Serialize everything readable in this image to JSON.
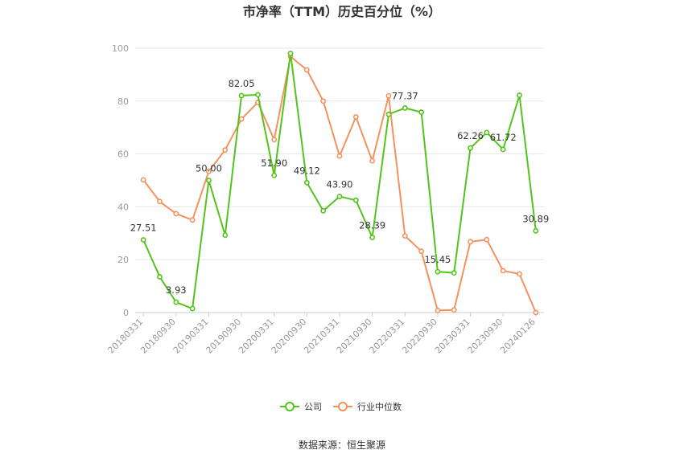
{
  "chart_data": {
    "type": "line",
    "title": "市净率（TTM）历史百分位（%）",
    "xlabel": "",
    "ylabel": "",
    "ylim": [
      0,
      100
    ],
    "yticks": [
      0,
      20,
      40,
      60,
      80,
      100
    ],
    "grid": true,
    "legend_position": "bottom",
    "x": [
      "20180331",
      "20180630",
      "20180930",
      "20181231",
      "20190331",
      "20190630",
      "20190930",
      "20191231",
      "20200331",
      "20200630",
      "20200930",
      "20201231",
      "20210331",
      "20210630",
      "20210930",
      "20211231",
      "20220331",
      "20220630",
      "20220930",
      "20221231",
      "20230331",
      "20230630",
      "20230930",
      "20231231",
      "20240126"
    ],
    "xtick_labels": [
      "20180331",
      "20180930",
      "20190331",
      "20190930",
      "20200331",
      "20200930",
      "20210331",
      "20210930",
      "20220331",
      "20220930",
      "20230331",
      "20230930",
      "20240126"
    ],
    "xtick_indices": [
      0,
      2,
      4,
      6,
      8,
      10,
      12,
      14,
      16,
      18,
      20,
      22,
      24
    ],
    "series": [
      {
        "name": "公司",
        "color": "#52c41a",
        "values": [
          27.51,
          13.5,
          3.93,
          1.5,
          50.0,
          29.3,
          82.05,
          82.4,
          51.9,
          98.0,
          49.12,
          38.5,
          43.9,
          42.5,
          28.39,
          75.0,
          77.37,
          75.8,
          15.45,
          15.0,
          62.26,
          68.1,
          61.72,
          82.2,
          30.89
        ],
        "data_labels": [
          {
            "index": 0,
            "text": "27.51"
          },
          {
            "index": 2,
            "text": "3.93"
          },
          {
            "index": 4,
            "text": "50.00"
          },
          {
            "index": 6,
            "text": "82.05"
          },
          {
            "index": 8,
            "text": "51.90"
          },
          {
            "index": 10,
            "text": "49.12"
          },
          {
            "index": 12,
            "text": "43.90"
          },
          {
            "index": 14,
            "text": "28.39"
          },
          {
            "index": 16,
            "text": "77.37"
          },
          {
            "index": 18,
            "text": "15.45"
          },
          {
            "index": 20,
            "text": "62.26"
          },
          {
            "index": 22,
            "text": "61.72"
          },
          {
            "index": 24,
            "text": "30.89"
          }
        ]
      },
      {
        "name": "行业中位数",
        "color": "#f4925f",
        "values": [
          50.2,
          42.0,
          37.4,
          35.0,
          53.4,
          61.5,
          73.2,
          79.5,
          65.4,
          96.8,
          91.8,
          80.0,
          59.2,
          74.0,
          57.4,
          82.0,
          29.0,
          23.2,
          0.8,
          1.0,
          26.8,
          27.6,
          15.8,
          14.6,
          0.0
        ],
        "data_labels": []
      }
    ]
  },
  "source_text": "数据来源：恒生聚源"
}
